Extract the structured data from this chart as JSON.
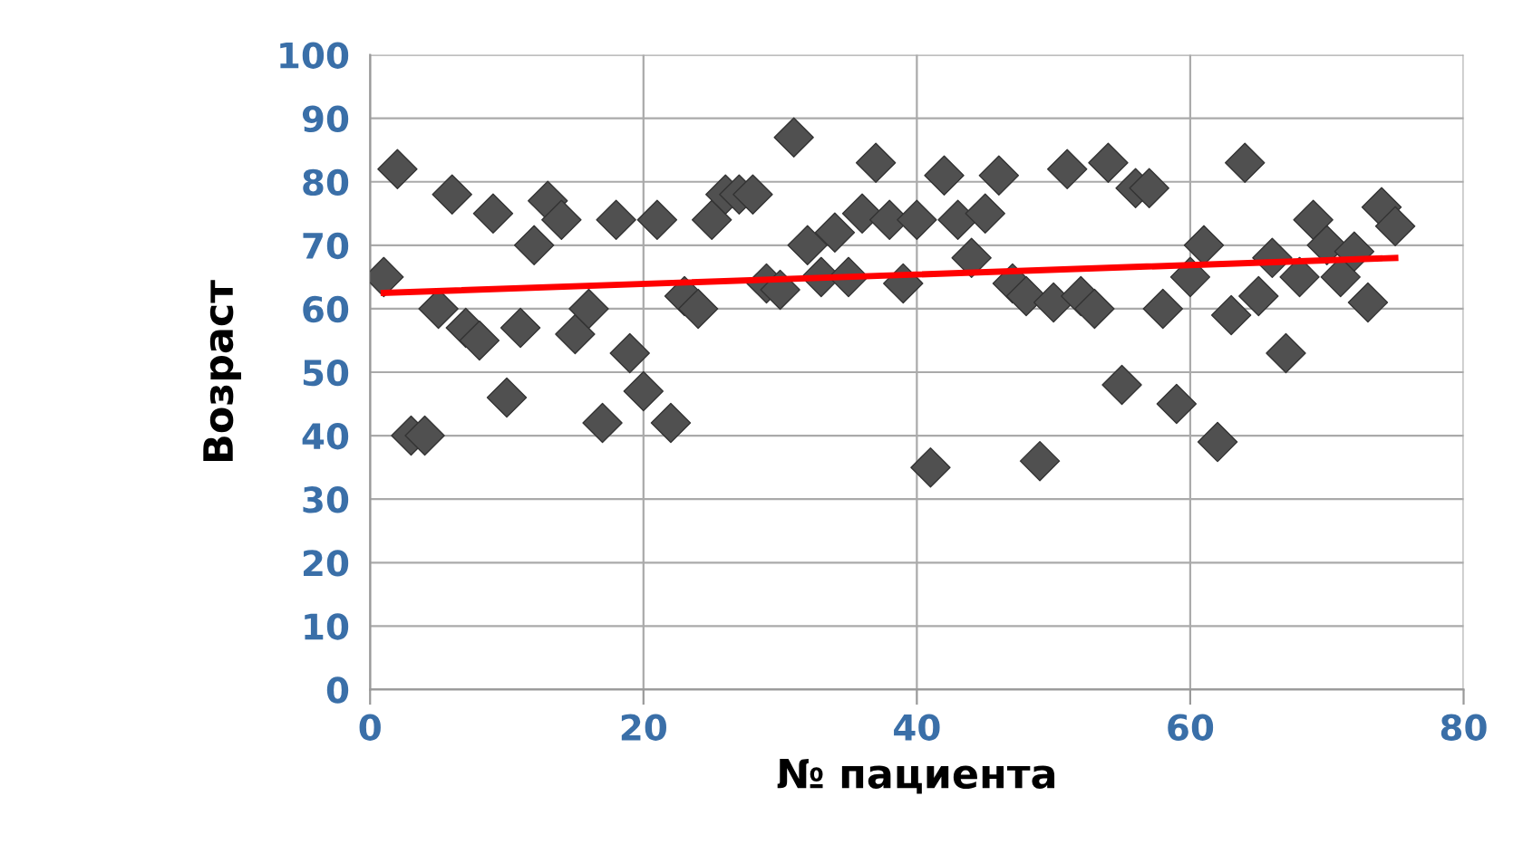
{
  "chart_data": {
    "type": "scatter",
    "xlabel": "№ пациента",
    "ylabel": "Возраст",
    "xlim": [
      0,
      80
    ],
    "xticks": [
      0,
      20,
      40,
      60,
      80
    ],
    "ylim": [
      0,
      100
    ],
    "yticks": [
      0,
      10,
      20,
      30,
      40,
      50,
      60,
      70,
      80,
      90,
      100
    ],
    "grid": true,
    "series": [
      {
        "marker": "diamond",
        "color": "#505050",
        "x": [
          1,
          2,
          3,
          4,
          5,
          6,
          7,
          8,
          9,
          10,
          11,
          12,
          13,
          14,
          15,
          16,
          17,
          18,
          19,
          20,
          21,
          22,
          23,
          24,
          25,
          26,
          27,
          28,
          29,
          30,
          31,
          32,
          33,
          34,
          35,
          36,
          37,
          38,
          39,
          40,
          41,
          42,
          43,
          44,
          45,
          46,
          47,
          48,
          49,
          50,
          51,
          52,
          53,
          54,
          55,
          56,
          57,
          58,
          59,
          60,
          61,
          62,
          63,
          64,
          65,
          66,
          67,
          68,
          69,
          70,
          71,
          72,
          73,
          74,
          75
        ],
        "values": [
          65,
          82,
          40,
          40,
          60,
          78,
          57,
          55,
          75,
          46,
          57,
          70,
          77,
          74,
          56,
          60,
          42,
          74,
          53,
          47,
          74,
          42,
          62,
          60,
          74,
          78,
          78,
          78,
          64,
          63,
          87,
          70,
          65,
          72,
          65,
          75,
          83,
          74,
          64,
          74,
          35,
          81,
          74,
          68,
          75,
          81,
          64,
          62,
          36,
          61,
          82,
          62,
          60,
          83,
          48,
          79,
          79,
          60,
          45,
          65,
          70,
          39,
          59,
          83,
          62,
          68,
          53,
          65,
          74,
          70,
          65,
          69,
          61,
          76,
          73
        ]
      },
      {
        "type": "line",
        "color": "#ff0000",
        "x": [
          1,
          75
        ],
        "values": [
          62.5,
          68
        ]
      }
    ]
  }
}
